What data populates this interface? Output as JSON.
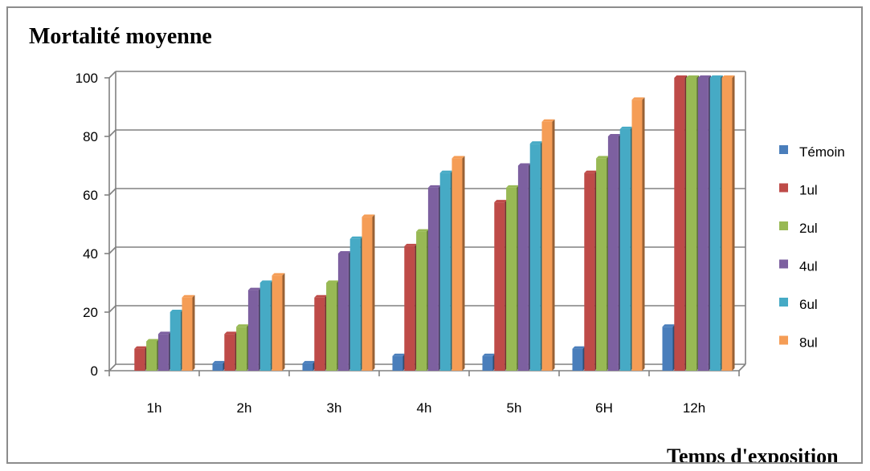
{
  "chart_data": {
    "type": "bar",
    "ylabel": "Mortalité moyenne",
    "xlabel": "Temps d'exposition",
    "ylim": [
      0,
      100
    ],
    "yticks": [
      "0",
      "20",
      "40",
      "60",
      "80",
      "100"
    ],
    "categories": [
      "1h",
      "2h",
      "3h",
      "4h",
      "5h",
      "6H",
      "12h"
    ],
    "series": [
      {
        "name": "Témoin",
        "color": "#4a7ebb",
        "values": [
          0,
          2.5,
          2.5,
          5,
          5,
          7.5,
          15
        ]
      },
      {
        "name": "1ul",
        "color": "#be4b48",
        "values": [
          7.5,
          12.5,
          25,
          42.5,
          57.5,
          67.5,
          100
        ]
      },
      {
        "name": "2ul",
        "color": "#98b954",
        "values": [
          10,
          15,
          30,
          47.5,
          62.5,
          72.5,
          100
        ]
      },
      {
        "name": "4ul",
        "color": "#7d60a0",
        "values": [
          12.5,
          27.5,
          40,
          62.5,
          70,
          80,
          100
        ]
      },
      {
        "name": "6ul",
        "color": "#46aac5",
        "values": [
          20,
          30,
          45,
          67.5,
          77.5,
          82.5,
          100
        ]
      },
      {
        "name": "8ul",
        "color": "#f59d56",
        "values": [
          25,
          32.5,
          52.5,
          72.5,
          85,
          92.5,
          100
        ]
      }
    ],
    "legend": "right",
    "grid": true
  }
}
